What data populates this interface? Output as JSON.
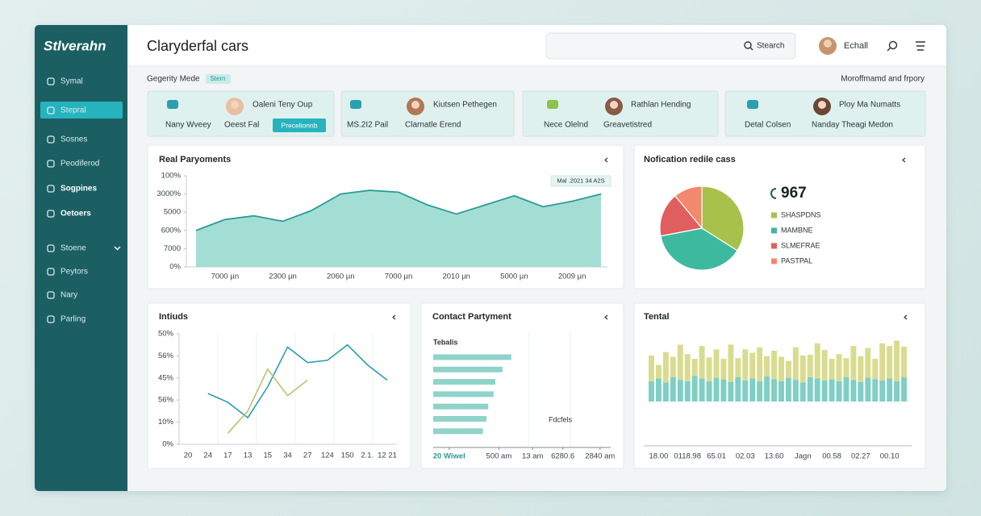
{
  "sidebar": {
    "brand": "Stlverahn",
    "items": [
      "Symal",
      "Stepral",
      "Sosnes",
      "Peodiferod",
      "Sogpines",
      "Oetoers",
      "Stoene",
      "Peytors",
      "Nary",
      "Parling"
    ],
    "active_item": 1
  },
  "header": {
    "title": "Claryderfal cars",
    "search": "Stearch",
    "user": "Echall"
  },
  "subheader": {
    "left": "Gegerity Mede",
    "badge": "Stern",
    "right": "Moroffmamd and frpory"
  },
  "cards": [
    {
      "caption": "Nany Wveey",
      "name": "Oaleni Teny Oup",
      "subtitle": "Oeest Fal",
      "button": "Precelionnb"
    },
    {
      "caption": "MS.2I2 Pail",
      "name": "Kiutsen Pethegen",
      "subtitle": "Clarnatle Erend"
    },
    {
      "caption": "Nece Olelnd",
      "name": "Rathlan Hending",
      "subtitle": "Greavetistred"
    },
    {
      "caption": "Detal Colsen",
      "name": "Ploy Ma Numatts",
      "subtitle": "Nanday Theagi Medon"
    }
  ],
  "charts": [
    {
      "type": "area",
      "title": "Real Paryoments",
      "annotation": "Mal .2021 34 A2S",
      "categories": [
        null,
        "7000 µn",
        null,
        "2300 µn",
        null,
        "2060 µn",
        null,
        "7000 µn",
        null,
        "2010 µn",
        null,
        "5000 µn",
        null,
        "2009 µn",
        null
      ],
      "values": [
        2.0,
        2.6,
        2.8,
        2.5,
        3.1,
        4.0,
        4.2,
        4.1,
        3.4,
        2.9,
        3.4,
        3.9,
        3.3,
        3.6,
        4.0
      ],
      "color": "#93d8ce",
      "line_color": "#2b9c96",
      "ylim": [
        0,
        5
      ],
      "yticks": [
        {
          "value": 0,
          "label": "0%"
        },
        {
          "value": 1,
          "label": "7000"
        },
        {
          "value": 2,
          "label": "600%"
        },
        {
          "value": 3,
          "label": "5000"
        },
        {
          "value": 4,
          "label": "3000%"
        },
        {
          "value": 5,
          "label": "100%"
        }
      ]
    },
    {
      "type": "pie",
      "title": "Nofication redile cass",
      "total": 967,
      "categories": [
        "SHASPDNS",
        "MAMBNE",
        "SLMEFRAE",
        "PASTPAL"
      ],
      "values": [
        34,
        38,
        17,
        11
      ],
      "colors": [
        "#a8c14b",
        "#3db9a0",
        "#e05e5e",
        "#f2896c"
      ]
    },
    {
      "type": "line",
      "title": "Intiuds",
      "categories": [
        "20",
        "24",
        "17",
        "13",
        "15",
        "34",
        "27",
        "124",
        "150",
        "2.1.",
        "12 21"
      ],
      "series": [
        {
          "color": "#2a9fad",
          "values": [
            null,
            2.3,
            1.9,
            1.2,
            2.6,
            4.4,
            3.7,
            3.8,
            4.5,
            3.6,
            2.9
          ]
        },
        {
          "color": "#b7c56c",
          "values": [
            null,
            null,
            0.5,
            1.5,
            3.4,
            2.2,
            2.9,
            null,
            null,
            null,
            null
          ]
        }
      ],
      "ylim": [
        0,
        5
      ],
      "yticks": [
        {
          "value": 0,
          "label": "0%"
        },
        {
          "value": 1,
          "label": "10%"
        },
        {
          "value": 2,
          "label": "56%"
        },
        {
          "value": 3,
          "label": "45%"
        },
        {
          "value": 4,
          "label": "56%"
        },
        {
          "value": 5,
          "label": "50%"
        }
      ]
    },
    {
      "type": "hbar",
      "title": "Contact Partyment",
      "annotations": [
        "Tebalis",
        "Fdcfels"
      ],
      "values": [
        44,
        39,
        35,
        34,
        31,
        30,
        28
      ],
      "color": "#8fd3c9",
      "xlim": [
        0,
        100
      ],
      "xticks": [
        {
          "value": 9,
          "label": "20 Wiwel"
        },
        {
          "value": 37,
          "label": "500 am"
        },
        {
          "value": 56,
          "label": "13 am"
        },
        {
          "value": 73,
          "label": "6280.6"
        },
        {
          "value": 94,
          "label": "2840 am"
        }
      ]
    },
    {
      "type": "stacked_bar",
      "title": "Tental",
      "categories": [
        null,
        "18.00",
        null,
        null,
        null,
        "0118.98",
        null,
        null,
        null,
        "65.01",
        null,
        null,
        null,
        "02.03",
        null,
        null,
        null,
        "13.60",
        null,
        null,
        null,
        "Jagn",
        null,
        null,
        null,
        "00.58",
        null,
        null,
        null,
        "02.27",
        null,
        null,
        null,
        "00.10",
        null,
        null
      ],
      "series": [
        {
          "color": "#7fcfc4",
          "values": [
            30,
            34,
            28,
            36,
            32,
            30,
            38,
            34,
            30,
            35,
            33,
            29,
            36,
            31,
            34,
            30,
            37,
            33,
            30,
            35,
            32,
            28,
            36,
            34,
            31,
            33,
            30,
            36,
            32,
            29,
            35,
            33,
            31,
            34,
            30,
            36
          ]
        },
        {
          "color": "#d9dc8f",
          "values": [
            38,
            20,
            45,
            30,
            52,
            40,
            25,
            48,
            35,
            42,
            30,
            55,
            28,
            46,
            38,
            50,
            30,
            42,
            36,
            25,
            48,
            40,
            33,
            52,
            45,
            30,
            40,
            28,
            50,
            38,
            44,
            30,
            55,
            48,
            60,
            45
          ]
        }
      ],
      "ylim": [
        0,
        100
      ]
    }
  ]
}
